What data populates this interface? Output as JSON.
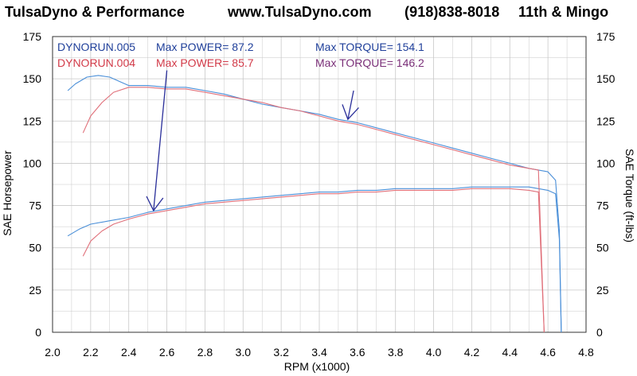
{
  "header": {
    "company": "TulsaDyno & Performance",
    "website": "www.TulsaDyno.com",
    "phone": "(918)838-8018",
    "location": "11th & Mingo"
  },
  "colors": {
    "run005": "#4a8fd8",
    "run004": "#e0707a",
    "run005_text": "#1f3f9a",
    "run004_text": "#d23a48",
    "torque004_text": "#7a2f78",
    "arrow": "#2a2f9a",
    "grid": "#c8c8c8",
    "frame": "#333333"
  },
  "chart_data": {
    "type": "line",
    "xlabel": "RPM (x1000)",
    "ylabel_left": "SAE Horsepower",
    "ylabel_right": "SAE Torque (ft-lbs)",
    "xlim": [
      2.0,
      4.8
    ],
    "ylim": [
      0,
      175
    ],
    "x_ticks": [
      "2.0",
      "2.2",
      "2.4",
      "2.6",
      "2.8",
      "3.0",
      "3.2",
      "3.4",
      "3.6",
      "3.8",
      "4.0",
      "4.2",
      "4.4",
      "4.6",
      "4.8"
    ],
    "y_ticks": [
      "0",
      "25",
      "50",
      "75",
      "100",
      "125",
      "150",
      "175"
    ],
    "grid": true,
    "legend": [
      {
        "run": "DYNORUN.005",
        "power_label": "Max POWER=",
        "power_value": "87.2",
        "torque_label": "Max TORQUE=",
        "torque_value": "154.1"
      },
      {
        "run": "DYNORUN.004",
        "power_label": "Max POWER=",
        "power_value": "85.7",
        "torque_label": "Max TORQUE=",
        "torque_value": "146.2"
      }
    ],
    "series": [
      {
        "name": "DYNORUN.005",
        "measure": "torque",
        "points": [
          [
            2.08,
            143
          ],
          [
            2.12,
            147
          ],
          [
            2.18,
            151
          ],
          [
            2.24,
            152
          ],
          [
            2.3,
            151
          ],
          [
            2.36,
            148
          ],
          [
            2.4,
            146
          ],
          [
            2.5,
            146
          ],
          [
            2.6,
            145
          ],
          [
            2.7,
            145
          ],
          [
            2.8,
            143
          ],
          [
            2.9,
            141
          ],
          [
            3.0,
            138
          ],
          [
            3.1,
            135
          ],
          [
            3.2,
            133
          ],
          [
            3.3,
            131
          ],
          [
            3.4,
            129
          ],
          [
            3.5,
            126
          ],
          [
            3.6,
            124
          ],
          [
            3.7,
            121
          ],
          [
            3.8,
            118
          ],
          [
            3.9,
            115
          ],
          [
            4.0,
            112
          ],
          [
            4.1,
            109
          ],
          [
            4.2,
            106
          ],
          [
            4.3,
            103
          ],
          [
            4.4,
            100
          ],
          [
            4.5,
            97
          ],
          [
            4.6,
            95
          ],
          [
            4.64,
            90
          ],
          [
            4.66,
            60
          ],
          [
            4.67,
            0
          ]
        ]
      },
      {
        "name": "DYNORUN.005",
        "measure": "power",
        "points": [
          [
            2.08,
            57
          ],
          [
            2.14,
            61
          ],
          [
            2.2,
            64
          ],
          [
            2.3,
            66
          ],
          [
            2.4,
            68
          ],
          [
            2.5,
            71
          ],
          [
            2.6,
            73
          ],
          [
            2.7,
            75
          ],
          [
            2.8,
            77
          ],
          [
            2.9,
            78
          ],
          [
            3.0,
            79
          ],
          [
            3.1,
            80
          ],
          [
            3.2,
            81
          ],
          [
            3.3,
            82
          ],
          [
            3.4,
            83
          ],
          [
            3.5,
            83
          ],
          [
            3.6,
            84
          ],
          [
            3.7,
            84
          ],
          [
            3.8,
            85
          ],
          [
            3.9,
            85
          ],
          [
            4.0,
            85
          ],
          [
            4.1,
            85
          ],
          [
            4.2,
            86
          ],
          [
            4.3,
            86
          ],
          [
            4.4,
            86
          ],
          [
            4.5,
            86
          ],
          [
            4.6,
            84
          ],
          [
            4.64,
            82
          ],
          [
            4.66,
            55
          ],
          [
            4.67,
            0
          ]
        ]
      },
      {
        "name": "DYNORUN.004",
        "measure": "torque",
        "points": [
          [
            2.16,
            118
          ],
          [
            2.2,
            128
          ],
          [
            2.26,
            136
          ],
          [
            2.32,
            142
          ],
          [
            2.4,
            145
          ],
          [
            2.5,
            145
          ],
          [
            2.6,
            144
          ],
          [
            2.7,
            144
          ],
          [
            2.8,
            142
          ],
          [
            2.9,
            140
          ],
          [
            3.0,
            138
          ],
          [
            3.1,
            136
          ],
          [
            3.2,
            133
          ],
          [
            3.3,
            131
          ],
          [
            3.4,
            128
          ],
          [
            3.5,
            125
          ],
          [
            3.6,
            123
          ],
          [
            3.7,
            120
          ],
          [
            3.8,
            117
          ],
          [
            3.9,
            114
          ],
          [
            4.0,
            111
          ],
          [
            4.1,
            108
          ],
          [
            4.2,
            105
          ],
          [
            4.3,
            102
          ],
          [
            4.4,
            99
          ],
          [
            4.5,
            97
          ],
          [
            4.55,
            96
          ],
          [
            4.58,
            0
          ]
        ]
      },
      {
        "name": "DYNORUN.004",
        "measure": "power",
        "points": [
          [
            2.16,
            45
          ],
          [
            2.2,
            54
          ],
          [
            2.26,
            60
          ],
          [
            2.32,
            64
          ],
          [
            2.4,
            67
          ],
          [
            2.5,
            70
          ],
          [
            2.6,
            72
          ],
          [
            2.7,
            74
          ],
          [
            2.8,
            76
          ],
          [
            2.9,
            77
          ],
          [
            3.0,
            78
          ],
          [
            3.1,
            79
          ],
          [
            3.2,
            80
          ],
          [
            3.3,
            81
          ],
          [
            3.4,
            82
          ],
          [
            3.5,
            82
          ],
          [
            3.6,
            83
          ],
          [
            3.7,
            83
          ],
          [
            3.8,
            84
          ],
          [
            3.9,
            84
          ],
          [
            4.0,
            84
          ],
          [
            4.1,
            84
          ],
          [
            4.2,
            85
          ],
          [
            4.3,
            85
          ],
          [
            4.4,
            85
          ],
          [
            4.5,
            84
          ],
          [
            4.55,
            83
          ],
          [
            4.58,
            0
          ]
        ]
      }
    ],
    "arrows": [
      {
        "from": [
          2.6,
          155
        ],
        "to": [
          2.53,
          72
        ]
      },
      {
        "from": [
          3.58,
          143
        ],
        "to": [
          3.55,
          126
        ]
      }
    ]
  }
}
